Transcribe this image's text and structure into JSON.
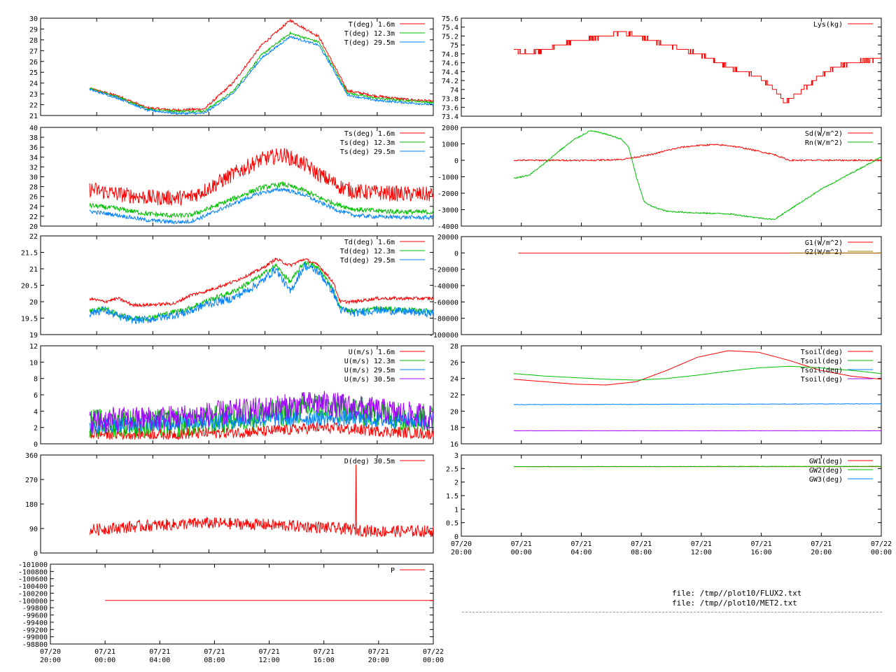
{
  "files": [
    "file: /tmp//plot10/FLUX2.txt",
    "file: /tmp//plot10/MET2.txt"
  ],
  "colors": {
    "red": "#ff0000",
    "green": "#00c000",
    "blue": "#0080ff",
    "purple": "#a000ff",
    "olive": "#a08000"
  },
  "chart_data": [
    {
      "id": "T",
      "type": "line",
      "ylim": [
        21,
        30
      ],
      "yticks": [
        "21",
        "22",
        "23",
        "24",
        "25",
        "26",
        "27",
        "28",
        "29",
        "30"
      ],
      "xticks": [],
      "series": [
        {
          "name": "T(deg)  1.6m",
          "color": "#ff0000",
          "noise": 0.12,
          "x": [
            0,
            2,
            4,
            6,
            8,
            10,
            12,
            14,
            16,
            17,
            18,
            20,
            22,
            24
          ],
          "y": [
            23.5,
            22.8,
            21.7,
            21.5,
            21.6,
            24.0,
            27.5,
            29.8,
            28.3,
            25.8,
            23.3,
            22.8,
            22.5,
            22.3
          ]
        },
        {
          "name": "T(deg) 12.3m",
          "color": "#00c000",
          "noise": 0.1,
          "x": [
            0,
            2,
            4,
            6,
            8,
            10,
            12,
            14,
            16,
            17,
            18,
            20,
            22,
            24
          ],
          "y": [
            23.5,
            22.7,
            21.6,
            21.4,
            21.4,
            23.2,
            26.6,
            28.6,
            27.8,
            25.5,
            23.1,
            22.6,
            22.4,
            22.2
          ]
        },
        {
          "name": "T(deg) 29.5m",
          "color": "#0080ff",
          "noise": 0.1,
          "x": [
            0,
            2,
            4,
            6,
            8,
            10,
            12,
            14,
            16,
            17,
            18,
            20,
            22,
            24
          ],
          "y": [
            23.4,
            22.6,
            21.5,
            21.2,
            21.2,
            23.0,
            26.3,
            28.3,
            27.5,
            25.3,
            22.9,
            22.4,
            22.2,
            22.0
          ]
        }
      ]
    },
    {
      "id": "Ts",
      "type": "line",
      "ylim": [
        20,
        40
      ],
      "yticks": [
        "20",
        "22",
        "24",
        "26",
        "28",
        "30",
        "32",
        "34",
        "36",
        "38",
        "40"
      ],
      "xticks": [],
      "series": [
        {
          "name": "Ts(deg)  1.6m",
          "color": "#ff0000",
          "noise": 1.6,
          "x": [
            0,
            2,
            4,
            6,
            7,
            8,
            10,
            12,
            13.5,
            15,
            16,
            17.5,
            18.5,
            20,
            22,
            24
          ],
          "y": [
            27.5,
            26.5,
            25.8,
            25.7,
            25.9,
            27.2,
            30.5,
            33.5,
            34.5,
            32.5,
            30.5,
            28.0,
            27.0,
            26.8,
            26.5,
            26.4
          ]
        },
        {
          "name": "Ts(deg) 12.3m",
          "color": "#00c000",
          "noise": 0.5,
          "x": [
            0,
            2,
            4,
            6,
            7,
            8,
            10,
            12,
            13.5,
            15,
            16,
            17.5,
            18.5,
            20,
            22,
            24
          ],
          "y": [
            24.2,
            23.5,
            22.5,
            22.1,
            22.2,
            23.2,
            25.5,
            27.8,
            28.5,
            27.2,
            25.8,
            24.2,
            23.4,
            23.1,
            22.9,
            22.8
          ]
        },
        {
          "name": "Ts(deg) 29.5m",
          "color": "#0080ff",
          "noise": 0.4,
          "x": [
            0,
            2,
            4,
            6,
            7,
            8,
            10,
            12,
            13.5,
            15,
            16,
            17.5,
            18.5,
            20,
            22,
            24
          ],
          "y": [
            23.0,
            22.2,
            21.2,
            20.8,
            20.9,
            22.0,
            24.5,
            26.8,
            27.5,
            26.3,
            24.9,
            23.0,
            22.2,
            21.9,
            21.8,
            21.7
          ]
        }
      ]
    },
    {
      "id": "Td",
      "type": "line",
      "ylim": [
        19,
        22
      ],
      "yticks": [
        "19",
        "19.5",
        "20",
        "20.5",
        "21",
        "21.5",
        "22"
      ],
      "xticks": [],
      "series": [
        {
          "name": "Td(deg)  1.6m",
          "color": "#ff0000",
          "noise": 0.05,
          "x": [
            0,
            1,
            2,
            3,
            4,
            6,
            7,
            8,
            10,
            12,
            13,
            14,
            15,
            16,
            17,
            17.5,
            18.5,
            20,
            22,
            24
          ],
          "y": [
            20.1,
            20.0,
            20.1,
            19.9,
            19.9,
            19.95,
            20.2,
            20.3,
            20.6,
            21.0,
            21.3,
            21.1,
            21.3,
            21.1,
            20.6,
            20.0,
            20.0,
            20.1,
            20.1,
            20.1
          ]
        },
        {
          "name": "Td(deg) 12.3m",
          "color": "#00c000",
          "noise": 0.08,
          "x": [
            0,
            1,
            2,
            3,
            4,
            6,
            7,
            8,
            10,
            12,
            13,
            14,
            15,
            16,
            17,
            17.5,
            18.5,
            20,
            22,
            24
          ],
          "y": [
            19.7,
            19.8,
            19.6,
            19.5,
            19.5,
            19.7,
            19.8,
            20.0,
            20.3,
            20.8,
            21.1,
            20.6,
            21.2,
            21.0,
            20.4,
            19.8,
            19.7,
            19.8,
            19.75,
            19.7
          ]
        },
        {
          "name": "Td(deg) 29.5m",
          "color": "#0080ff",
          "noise": 0.12,
          "x": [
            0,
            1,
            2,
            3,
            4,
            6,
            7,
            8,
            10,
            12,
            13,
            14,
            15,
            16,
            17,
            17.5,
            18.5,
            20,
            22,
            24
          ],
          "y": [
            19.65,
            19.75,
            19.55,
            19.45,
            19.45,
            19.6,
            19.7,
            19.9,
            20.1,
            20.6,
            21.0,
            20.3,
            21.1,
            20.9,
            20.3,
            19.75,
            19.65,
            19.75,
            19.7,
            19.65
          ]
        }
      ]
    },
    {
      "id": "U",
      "type": "line",
      "ylim": [
        0,
        12
      ],
      "yticks": [
        "0",
        "2",
        "4",
        "6",
        "8",
        "10",
        "12"
      ],
      "xticks": [],
      "series": [
        {
          "name": "U(m/s)  1.6m",
          "color": "#ff0000",
          "noise": 0.7,
          "x": [
            0,
            6,
            12,
            16,
            24
          ],
          "y": [
            1.2,
            1.2,
            1.5,
            2.0,
            1.2
          ]
        },
        {
          "name": "U(m/s) 12.3m",
          "color": "#00c000",
          "noise": 1.8,
          "x": [
            0,
            6,
            12,
            16,
            24
          ],
          "y": [
            2.5,
            2.5,
            3.5,
            4.5,
            3.0
          ]
        },
        {
          "name": "U(m/s) 29.5m",
          "color": "#0080ff",
          "noise": 1.0,
          "x": [
            0,
            6,
            12,
            16,
            24
          ],
          "y": [
            2.2,
            2.6,
            3.0,
            3.2,
            2.8
          ]
        },
        {
          "name": "U(m/s) 30.5m",
          "color": "#a000ff",
          "noise": 1.6,
          "x": [
            0,
            6,
            12,
            16,
            24
          ],
          "y": [
            2.8,
            3.2,
            4.2,
            5.0,
            3.2
          ]
        }
      ]
    },
    {
      "id": "D",
      "type": "line",
      "ylim": [
        0,
        360
      ],
      "yticks": [
        "0",
        "90",
        "180",
        "270",
        "360"
      ],
      "xticks": [],
      "series": [
        {
          "name": "D(deg)  30.5m",
          "color": "#ff0000",
          "noise": 22,
          "spike": [
            18.6,
            325
          ],
          "x": [
            0,
            4,
            8,
            12,
            16,
            20,
            24
          ],
          "y": [
            85,
            100,
            110,
            105,
            95,
            80,
            80
          ]
        }
      ]
    },
    {
      "id": "P",
      "type": "line",
      "ylim": [
        -101000,
        -98800
      ],
      "invert": true,
      "yticks": [
        "-101000",
        "-100800",
        "-100600",
        "-100400",
        "-100200",
        "-100000",
        "-99800",
        "-99600",
        "-99400",
        "-99200",
        "-99000",
        "-98800"
      ],
      "xticks": [
        "07/20\n20:00",
        "07/21\n00:00",
        "07/21\n04:00",
        "07/21\n08:00",
        "07/21\n12:00",
        "07/21\n16:00",
        "07/21\n20:00",
        "07/22\n00:00"
      ],
      "series": [
        {
          "name": "P",
          "color": "#ff0000",
          "noise": 0,
          "x": [
            0.5,
            24
          ],
          "y": [
            -100000,
            -100000
          ]
        }
      ]
    },
    {
      "id": "Lys",
      "type": "line",
      "ylim": [
        73.4,
        75.6
      ],
      "yticks": [
        "73.4",
        "73.6",
        "73.8",
        "74",
        "74.2",
        "74.4",
        "74.6",
        "74.8",
        "75",
        "75.2",
        "75.4",
        "75.6"
      ],
      "xticks": [],
      "series": [
        {
          "name": "Lys(kg)",
          "color": "#ff0000",
          "noise": 0.03,
          "step": true,
          "x": [
            0,
            1,
            2,
            3,
            4,
            6,
            7,
            8,
            10,
            12,
            14,
            15,
            16,
            17,
            17.7,
            18.5,
            20,
            21,
            22,
            24
          ],
          "y": [
            74.9,
            74.8,
            74.9,
            75.0,
            75.1,
            75.2,
            75.3,
            75.2,
            75.0,
            74.8,
            74.5,
            74.4,
            74.3,
            74.0,
            73.7,
            73.9,
            74.3,
            74.5,
            74.6,
            74.7
          ]
        }
      ]
    },
    {
      "id": "Sd",
      "type": "line",
      "ylim": [
        -4000,
        2000
      ],
      "yticks": [
        "-4000",
        "-3000",
        "-2000",
        "-1000",
        "0",
        "1000",
        "2000"
      ],
      "xticks": [],
      "series": [
        {
          "name": "Sd(W/m^2)",
          "color": "#ff0000",
          "noise": 45,
          "x": [
            0,
            5,
            7,
            8,
            9,
            10,
            11,
            12,
            13,
            14,
            15,
            16,
            17,
            18,
            24
          ],
          "y": [
            0,
            0,
            50,
            200,
            350,
            600,
            800,
            900,
            950,
            900,
            750,
            550,
            350,
            0,
            0
          ]
        },
        {
          "name": "Rn(W/m^2)",
          "color": "#00c000",
          "noise": 40,
          "x": [
            0,
            1,
            2,
            3,
            4,
            5,
            6,
            7,
            7.5,
            8,
            8.5,
            9,
            10,
            12,
            14,
            16,
            17,
            18,
            19,
            20,
            22,
            24
          ],
          "y": [
            -1100,
            -900,
            -200,
            600,
            1300,
            1800,
            1600,
            1300,
            800,
            -1000,
            -2500,
            -2800,
            -3100,
            -3200,
            -3250,
            -3500,
            -3600,
            -3000,
            -2400,
            -1800,
            -800,
            200
          ]
        }
      ]
    },
    {
      "id": "G",
      "type": "line",
      "ylim": [
        -100000,
        20000
      ],
      "yticks": [
        "-100000",
        "-80000",
        "-60000",
        "-40000",
        "-20000",
        "0",
        "20000"
      ],
      "xticks": [],
      "series": [
        {
          "name": "G1(W/m^2)",
          "color": "#ff0000",
          "noise": 0,
          "x": [
            0.3,
            24
          ],
          "y": [
            -200,
            -200
          ]
        },
        {
          "name": "G2(W/m^2)",
          "color": "#a08000",
          "noise": 0,
          "x": [
            18,
            24
          ],
          "y": [
            -100,
            -100
          ]
        }
      ]
    },
    {
      "id": "Tsoil",
      "type": "line",
      "ylim": [
        16,
        28
      ],
      "yticks": [
        "16",
        "18",
        "20",
        "22",
        "24",
        "26",
        "28"
      ],
      "xticks": [],
      "series": [
        {
          "name": "Tsoil(deg)",
          "color": "#ff0000",
          "noise": 0,
          "x": [
            0,
            2,
            4,
            6,
            8,
            10,
            12,
            14,
            16,
            18,
            20,
            22,
            24
          ],
          "y": [
            23.9,
            23.6,
            23.3,
            23.2,
            23.6,
            25.0,
            26.6,
            27.4,
            27.2,
            26.2,
            25.0,
            24.3,
            23.9
          ]
        },
        {
          "name": "Tsoil(deg)",
          "color": "#00c000",
          "noise": 0,
          "x": [
            0,
            2,
            4,
            6,
            8,
            10,
            12,
            14,
            16,
            18,
            20,
            22,
            24
          ],
          "y": [
            24.6,
            24.3,
            24.1,
            23.9,
            23.8,
            24.0,
            24.4,
            24.9,
            25.3,
            25.5,
            25.3,
            25.0,
            24.6
          ]
        },
        {
          "name": "Tsoil(deg)",
          "color": "#0080ff",
          "noise": 0.03,
          "x": [
            0,
            24
          ],
          "y": [
            20.8,
            20.9
          ]
        },
        {
          "name": "Tsoil(deg)",
          "color": "#a000ff",
          "noise": 0.02,
          "x": [
            0,
            24
          ],
          "y": [
            17.6,
            17.6
          ]
        }
      ]
    },
    {
      "id": "GW",
      "type": "line",
      "ylim": [
        0,
        3
      ],
      "yticks": [
        "0",
        "0.5",
        "1",
        "1.5",
        "2",
        "2.5",
        "3"
      ],
      "xticks": [
        "07/20\n20:00",
        "07/21\n00:00",
        "07/21\n04:00",
        "07/21\n08:00",
        "07/21\n12:00",
        "07/21\n16:00",
        "07/21\n20:00",
        "07/22\n00:00"
      ],
      "series": [
        {
          "name": "GW1(deg)",
          "color": "#ff0000",
          "noise": 0,
          "x": [
            0,
            24
          ],
          "y": [
            2.57,
            2.57
          ]
        },
        {
          "name": "GW2(deg)",
          "color": "#00c000",
          "noise": 0.008,
          "x": [
            0,
            24
          ],
          "y": [
            2.57,
            2.58
          ]
        },
        {
          "name": "GW3(deg)",
          "color": "#0080ff",
          "noise": 0,
          "x": [],
          "y": []
        }
      ]
    }
  ]
}
